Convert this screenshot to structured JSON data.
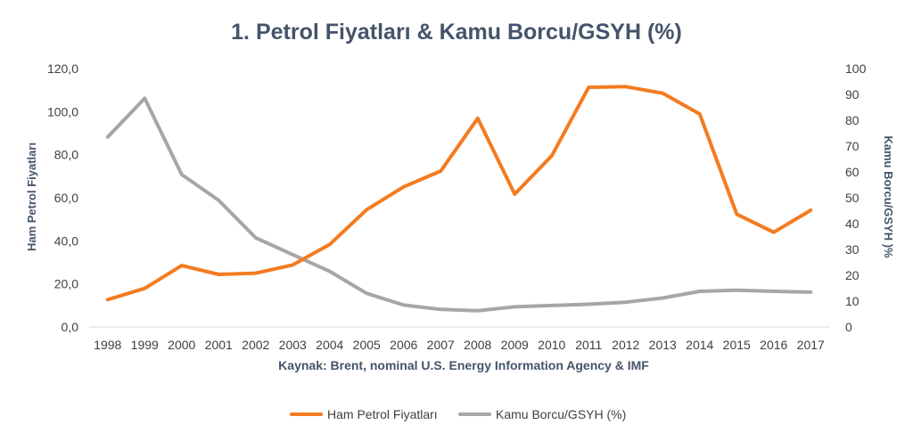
{
  "chart_data": {
    "type": "line",
    "title": "1. Petrol Fiyatları & Kamu Borcu/GSYH (%)",
    "source_note": "Kaynak: Brent, nominal U.S. Energy Information Agency & IMF",
    "ylabel_left": "Ham Petrol Fiyatları",
    "ylabel_right": "Kamu Borcu/GSYH )%",
    "ylim_left": [
      0,
      120
    ],
    "ylim_right": [
      0,
      100
    ],
    "yticks_left": [
      "0,0",
      "20,0",
      "40,0",
      "60,0",
      "80,0",
      "100,0",
      "120,0"
    ],
    "yticks_right": [
      "0",
      "10",
      "20",
      "30",
      "40",
      "50",
      "60",
      "70",
      "80",
      "90",
      "100"
    ],
    "categories": [
      "1998",
      "1999",
      "2000",
      "2001",
      "2002",
      "2003",
      "2004",
      "2005",
      "2006",
      "2007",
      "2008",
      "2009",
      "2010",
      "2011",
      "2012",
      "2013",
      "2014",
      "2015",
      "2016",
      "2017"
    ],
    "series": [
      {
        "name": "Ham Petrol Fiyatları",
        "axis": "left",
        "color": "#f47b20",
        "values": [
          12.7,
          17.9,
          28.5,
          24.4,
          25.0,
          28.8,
          38.3,
          54.5,
          65.1,
          72.4,
          96.9,
          61.7,
          79.5,
          111.3,
          111.6,
          108.6,
          98.9,
          52.4,
          44.0,
          54.2
        ]
      },
      {
        "name": "Kamu Borcu/GSYH (%)",
        "axis": "right",
        "color": "#a6a6a6",
        "values": [
          73.5,
          88.5,
          59.0,
          49.0,
          34.5,
          28.0,
          21.5,
          13.0,
          8.5,
          6.8,
          6.3,
          7.8,
          8.3,
          8.8,
          9.6,
          11.2,
          13.8,
          14.2,
          13.8,
          13.5
        ]
      }
    ],
    "legend_position": "bottom",
    "grid": false
  }
}
